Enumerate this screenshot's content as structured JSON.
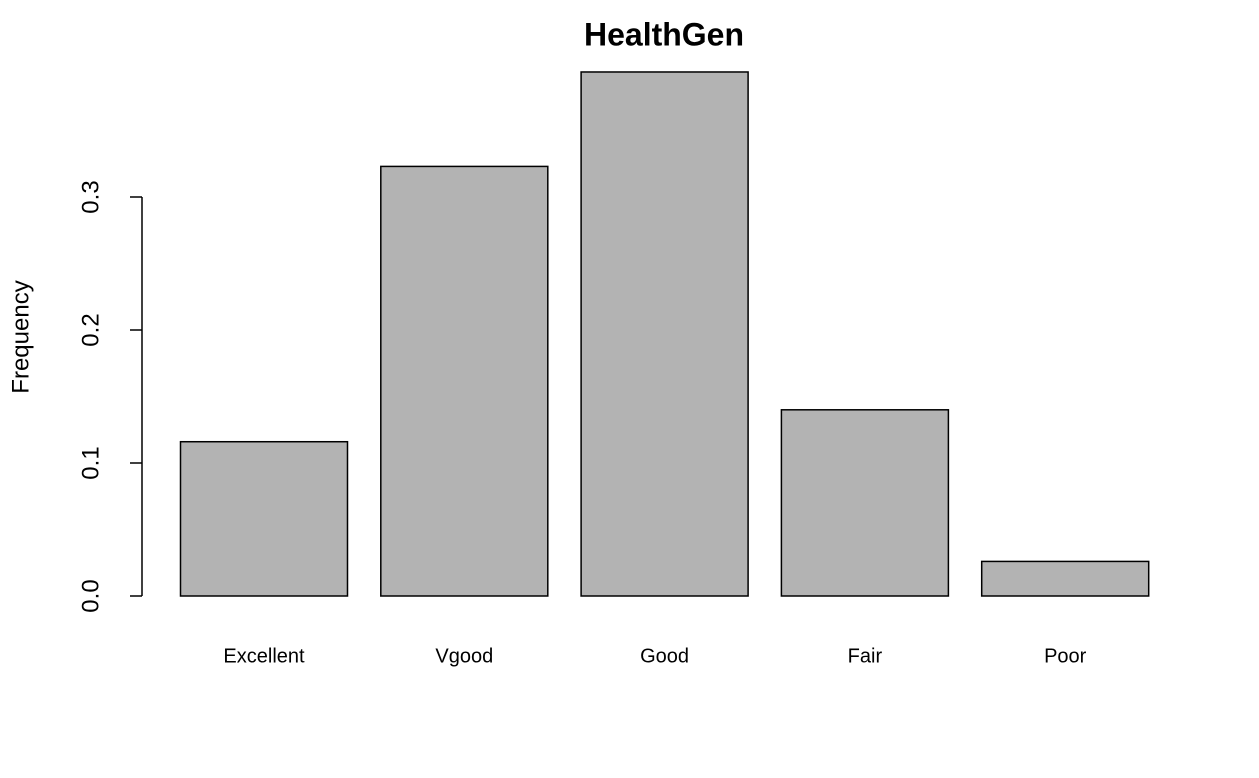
{
  "chart_data": {
    "type": "bar",
    "title": "HealthGen",
    "y_label": "Frequency",
    "categories": [
      "Excellent",
      "Vgood",
      "Good",
      "Fair",
      "Poor"
    ],
    "values": [
      0.116,
      0.323,
      0.394,
      0.14,
      0.026
    ],
    "color": "#b3b3b3",
    "ylim": [
      0,
      0.4
    ],
    "yticks": [
      {
        "value": 0,
        "label": "0.0"
      },
      0.1,
      0.2,
      0.3
    ],
    "grid": false
  }
}
